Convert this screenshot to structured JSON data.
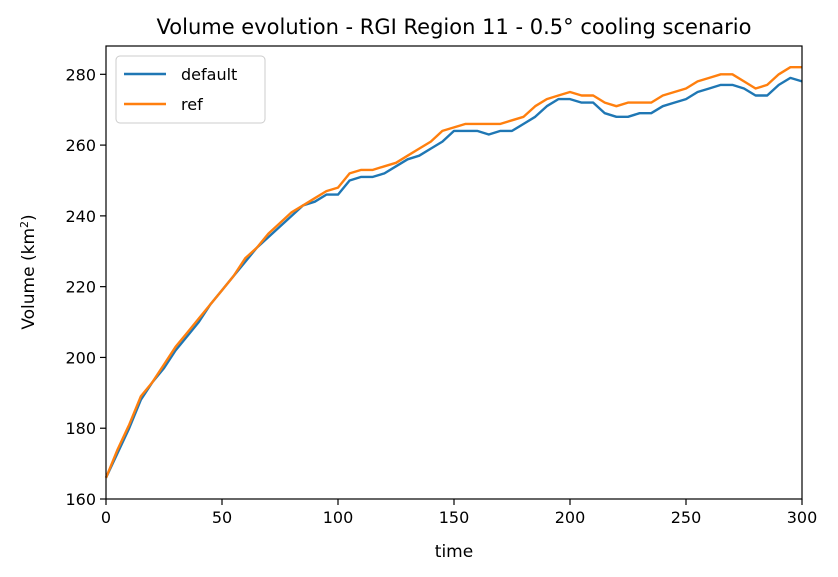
{
  "chart_data": {
    "type": "line",
    "title": "Volume evolution - RGI Region 11 - 0.5° cooling scenario",
    "xlabel": "time",
    "ylabel": "Volume (km²)",
    "ylabel_main": "Volume (km",
    "ylabel_sup": "2",
    "ylabel_end": ")",
    "xlim": [
      0,
      300
    ],
    "ylim": [
      160,
      288
    ],
    "xticks": [
      0,
      50,
      100,
      150,
      200,
      250,
      300
    ],
    "yticks": [
      160,
      180,
      200,
      220,
      240,
      260,
      280
    ],
    "grid": false,
    "legend": {
      "position": "upper-left",
      "entries": [
        "default",
        "ref"
      ]
    },
    "x": [
      0,
      5,
      10,
      15,
      20,
      25,
      30,
      35,
      40,
      45,
      50,
      55,
      60,
      65,
      70,
      75,
      80,
      85,
      90,
      95,
      100,
      105,
      110,
      115,
      120,
      125,
      130,
      135,
      140,
      145,
      150,
      155,
      160,
      165,
      170,
      175,
      180,
      185,
      190,
      195,
      200,
      205,
      210,
      215,
      220,
      225,
      230,
      235,
      240,
      245,
      250,
      255,
      260,
      265,
      270,
      275,
      280,
      285,
      290,
      295,
      300
    ],
    "series": [
      {
        "name": "default",
        "color": "#1f77b4",
        "values": [
          166,
          173,
          180,
          188,
          193,
          197,
          202,
          206,
          210,
          215,
          219,
          223,
          227,
          231,
          234,
          237,
          240,
          243,
          244,
          246,
          246,
          250,
          251,
          251,
          252,
          254,
          256,
          257,
          259,
          261,
          264,
          264,
          264,
          263,
          264,
          264,
          266,
          268,
          271,
          273,
          273,
          272,
          272,
          269,
          268,
          268,
          269,
          269,
          271,
          272,
          273,
          275,
          276,
          277,
          277,
          276,
          274,
          274,
          277,
          279,
          278
        ]
      },
      {
        "name": "ref",
        "color": "#ff7f0e",
        "values": [
          166,
          174,
          181,
          189,
          193,
          198,
          203,
          207,
          211,
          215,
          219,
          223,
          228,
          231,
          235,
          238,
          241,
          243,
          245,
          247,
          248,
          252,
          253,
          253,
          254,
          255,
          257,
          259,
          261,
          264,
          265,
          266,
          266,
          266,
          266,
          267,
          268,
          271,
          273,
          274,
          275,
          274,
          274,
          272,
          271,
          272,
          272,
          272,
          274,
          275,
          276,
          278,
          279,
          280,
          280,
          278,
          276,
          277,
          280,
          282,
          282
        ]
      }
    ]
  }
}
